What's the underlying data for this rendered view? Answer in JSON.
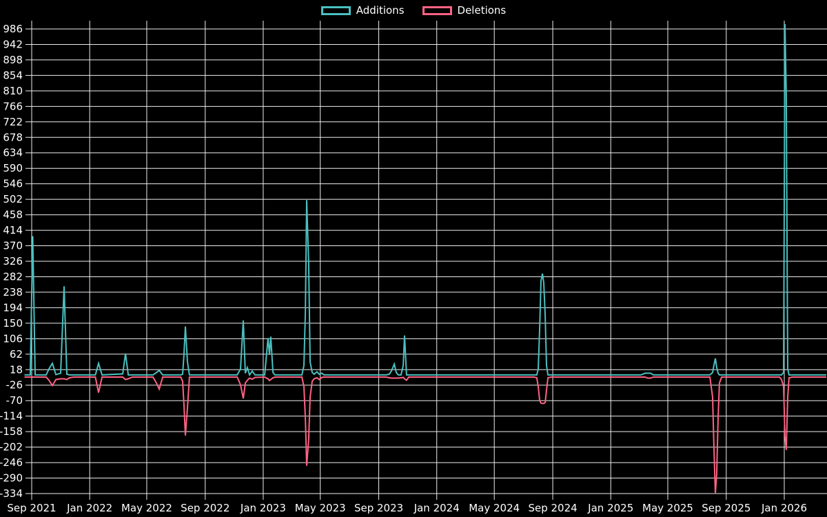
{
  "window": {
    "background": "#000000",
    "text_color": "#ffffff",
    "grid_color": "#eeeeee"
  },
  "legend": {
    "position": "top",
    "items": [
      {
        "label": "Additions",
        "color": "#4bc0c0"
      },
      {
        "label": "Deletions",
        "color": "#ff6384"
      }
    ]
  },
  "chart_data": {
    "type": "line",
    "title": "",
    "legend_position": "top",
    "background": "#000000",
    "x_axis": {
      "unit": "months since Sep 2021",
      "tick_labels": [
        "Sep 2021",
        "Jan 2022",
        "May 2022",
        "Sep 2022",
        "Jan 2023",
        "May 2023",
        "Sep 2023",
        "Jan 2024",
        "May 2024",
        "Sep 2024",
        "Jan 2025",
        "May 2025",
        "Sep 2025",
        "Jan 2026"
      ],
      "tick_interval_months": 4,
      "range_months": [
        -0.5,
        55
      ]
    },
    "y_axis": {
      "max": 986,
      "min": -334,
      "step": 44,
      "grid": true,
      "ticks": [
        986,
        942,
        898,
        854,
        810,
        766,
        722,
        678,
        634,
        590,
        546,
        502,
        458,
        414,
        370,
        326,
        282,
        238,
        194,
        150,
        106,
        62,
        18,
        -26,
        -70,
        -114,
        -158,
        -202,
        -246,
        -290,
        -334
      ]
    },
    "series": [
      {
        "name": "Additions",
        "color": "#4bc0c0"
      },
      {
        "name": "Deletions",
        "color": "#ff6384"
      }
    ],
    "points_format": [
      "t_months_since_Sep_2021",
      "additions",
      "deletions"
    ],
    "points": [
      [
        -0.5,
        3,
        -3
      ],
      [
        -0.1,
        3,
        -3
      ],
      [
        0.07,
        397,
        -3
      ],
      [
        0.24,
        3,
        -3
      ],
      [
        1.0,
        3,
        -3
      ],
      [
        1.19,
        20,
        -12
      ],
      [
        1.43,
        36,
        -27
      ],
      [
        1.67,
        4,
        -10
      ],
      [
        2.0,
        8,
        -8
      ],
      [
        2.24,
        255,
        -8
      ],
      [
        2.43,
        5,
        -10
      ],
      [
        2.62,
        3,
        -5
      ],
      [
        2.9,
        3,
        -3
      ],
      [
        4.4,
        3,
        -3
      ],
      [
        4.62,
        36,
        -47
      ],
      [
        4.86,
        3,
        -3
      ],
      [
        6.29,
        6,
        -3
      ],
      [
        6.48,
        64,
        -10
      ],
      [
        6.67,
        3,
        -8
      ],
      [
        6.95,
        3,
        -3
      ],
      [
        8.38,
        3,
        -3
      ],
      [
        8.62,
        10,
        -20
      ],
      [
        8.81,
        16,
        -37
      ],
      [
        9.05,
        3,
        -3
      ],
      [
        10.3,
        3,
        -3
      ],
      [
        10.43,
        5,
        -15
      ],
      [
        10.52,
        60,
        -80
      ],
      [
        10.62,
        141,
        -169
      ],
      [
        10.76,
        40,
        -90
      ],
      [
        10.9,
        3,
        -3
      ],
      [
        14.2,
        3,
        -3
      ],
      [
        14.43,
        20,
        -25
      ],
      [
        14.62,
        158,
        -64
      ],
      [
        14.76,
        8,
        -20
      ],
      [
        14.9,
        24,
        -12
      ],
      [
        15.05,
        3,
        -6
      ],
      [
        15.24,
        14,
        -9
      ],
      [
        15.43,
        3,
        -4
      ],
      [
        16.1,
        3,
        -3
      ],
      [
        16.33,
        108,
        -8
      ],
      [
        16.43,
        60,
        -13
      ],
      [
        16.52,
        112,
        -10
      ],
      [
        16.67,
        10,
        -5
      ],
      [
        16.81,
        3,
        -3
      ],
      [
        18.67,
        3,
        -3
      ],
      [
        18.81,
        30,
        -30
      ],
      [
        18.91,
        180,
        -120
      ],
      [
        19.0,
        500,
        -255
      ],
      [
        19.14,
        320,
        -180
      ],
      [
        19.24,
        40,
        -60
      ],
      [
        19.38,
        10,
        -15
      ],
      [
        19.52,
        5,
        -8
      ],
      [
        19.71,
        12,
        -5
      ],
      [
        19.86,
        5,
        -10
      ],
      [
        20.05,
        8,
        -4
      ],
      [
        20.19,
        3,
        -3
      ],
      [
        24.48,
        3,
        -3
      ],
      [
        24.71,
        5,
        -5
      ],
      [
        24.86,
        15,
        -6
      ],
      [
        25.05,
        34,
        -6
      ],
      [
        25.19,
        10,
        -6
      ],
      [
        25.33,
        3,
        -6
      ],
      [
        25.52,
        3,
        -5
      ],
      [
        25.67,
        30,
        -4
      ],
      [
        25.76,
        115,
        -8
      ],
      [
        25.9,
        3,
        -12
      ],
      [
        26.05,
        3,
        -3
      ],
      [
        34.71,
        3,
        -3
      ],
      [
        34.9,
        3,
        -5
      ],
      [
        35.0,
        20,
        -30
      ],
      [
        35.1,
        137,
        -70
      ],
      [
        35.19,
        270,
        -77
      ],
      [
        35.29,
        291,
        -78
      ],
      [
        35.38,
        265,
        -78
      ],
      [
        35.48,
        170,
        -75
      ],
      [
        35.57,
        30,
        -40
      ],
      [
        35.67,
        3,
        -5
      ],
      [
        35.9,
        3,
        -3
      ],
      [
        42.1,
        3,
        -3
      ],
      [
        42.38,
        8,
        -3
      ],
      [
        42.57,
        8,
        -6
      ],
      [
        42.76,
        8,
        -6
      ],
      [
        42.95,
        3,
        -3
      ],
      [
        46.86,
        3,
        -3
      ],
      [
        47.05,
        10,
        -60
      ],
      [
        47.14,
        30,
        -200
      ],
      [
        47.24,
        50,
        -334
      ],
      [
        47.33,
        25,
        -280
      ],
      [
        47.43,
        8,
        -120
      ],
      [
        47.52,
        3,
        -20
      ],
      [
        47.67,
        3,
        -3
      ],
      [
        51.67,
        3,
        -3
      ],
      [
        51.81,
        3,
        -10
      ],
      [
        51.95,
        10,
        -30
      ],
      [
        52.05,
        1000,
        -170
      ],
      [
        52.14,
        800,
        -210
      ],
      [
        52.24,
        20,
        -60
      ],
      [
        52.33,
        3,
        -5
      ],
      [
        52.57,
        3,
        -3
      ],
      [
        54.9,
        3,
        -3
      ]
    ]
  }
}
